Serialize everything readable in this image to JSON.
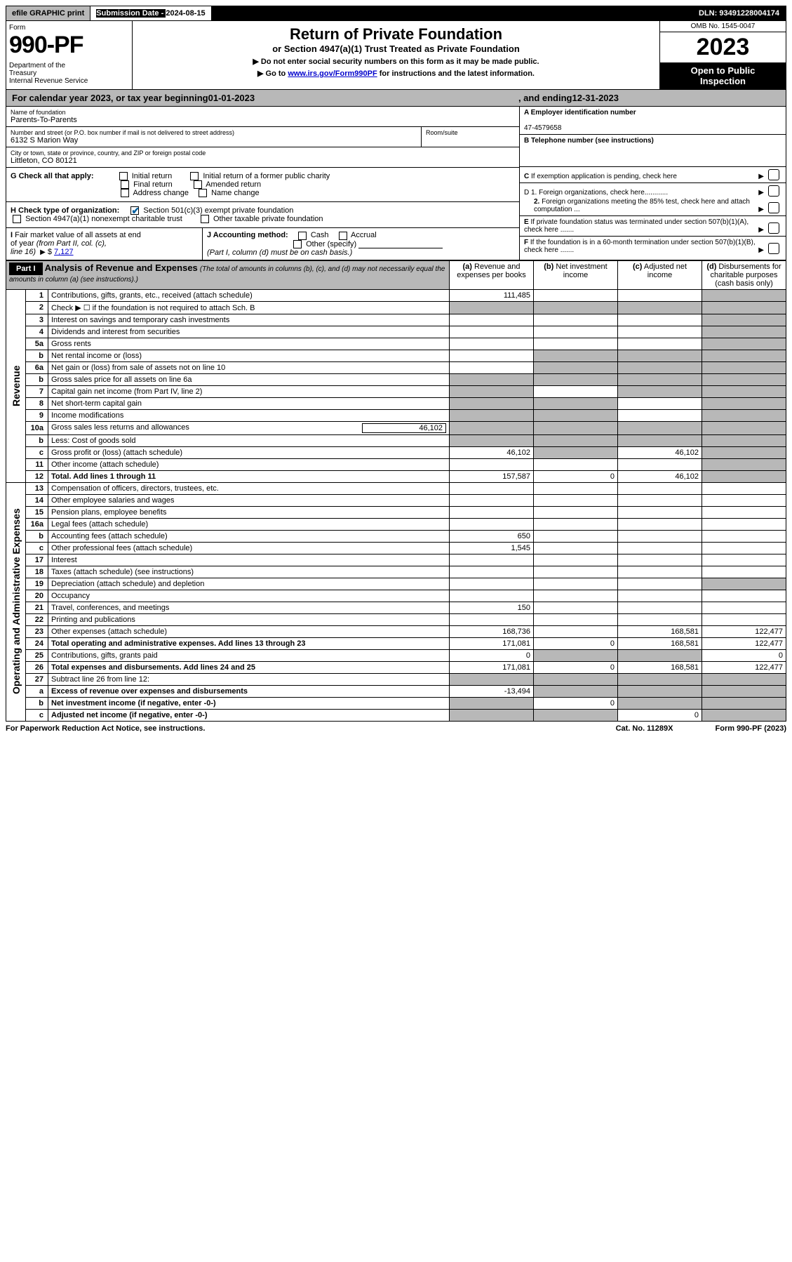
{
  "top": {
    "efile": "efile GRAPHIC print",
    "sub_date_lbl": "Submission Date - ",
    "sub_date_val": "2024-08-15",
    "dln": "DLN: 93491228004174"
  },
  "header": {
    "form": "Form",
    "formnum": "990-PF",
    "dept": "Department of the Treasury\nInternal Revenue Service",
    "title": "Return of Private Foundation",
    "sub": "or Section 4947(a)(1) Trust Treated as Private Foundation",
    "instr1": "▶ Do not enter social security numbers on this form as it may be made public.",
    "instr2_pre": "▶ Go to ",
    "instr2_link": "www.irs.gov/Form990PF",
    "instr2_post": " for instructions and the latest information.",
    "omb": "OMB No. 1545-0047",
    "year": "2023",
    "open": "Open to Public Inspection"
  },
  "tax_year": {
    "pre": "For calendar year 2023, or tax year beginning ",
    "begin": "01-01-2023",
    "mid": ", and ending ",
    "end": "12-31-2023"
  },
  "entity": {
    "name_lbl": "Name of foundation",
    "name": "Parents-To-Parents",
    "addr_lbl": "Number and street (or P.O. box number if mail is not delivered to street address)",
    "addr": "6132 S Marion Way",
    "room_lbl": "Room/suite",
    "city_lbl": "City or town, state or province, country, and ZIP or foreign postal code",
    "city": "Littleton, CO  80121",
    "a_lbl": "A Employer identification number",
    "a_val": "47-4579658",
    "b_lbl": "B Telephone number (see instructions)",
    "c_lbl": "C If exemption application is pending, check here",
    "d1": "D 1. Foreign organizations, check here............",
    "d2": "2. Foreign organizations meeting the 85% test, check here and attach computation ...",
    "e_lbl": "E  If private foundation status was terminated under section 507(b)(1)(A), check here .......",
    "f_lbl": "F  If the foundation is in a 60-month termination under section 507(b)(1)(B), check here .......",
    "g_lbl": "G Check all that apply:",
    "g_opts": [
      "Initial return",
      "Initial return of a former public charity",
      "Final return",
      "Amended return",
      "Address change",
      "Name change"
    ],
    "h_lbl": "H Check type of organization:",
    "h_opts": [
      "Section 501(c)(3) exempt private foundation",
      "Section 4947(a)(1) nonexempt charitable trust",
      "Other taxable private foundation"
    ],
    "i_lbl": "I Fair market value of all assets at end of year (from Part II, col. (c), line 16) ",
    "i_val": "7,127",
    "j_lbl": "J Accounting method:",
    "j_opts": [
      "Cash",
      "Accrual",
      "Other (specify)"
    ],
    "j_note": "(Part I, column (d) must be on cash basis.)"
  },
  "part1": {
    "hdr": "Part I",
    "title": "Analysis of Revenue and Expenses",
    "title_note": "(The total of amounts in columns (b), (c), and (d) may not necessarily equal the amounts in column (a) (see instructions).)",
    "cols": {
      "a": "(a) Revenue and expenses per books",
      "b": "(b) Net investment income",
      "c": "(c) Adjusted net income",
      "d": "(d) Disbursements for charitable purposes (cash basis only)"
    }
  },
  "sections": [
    "Revenue",
    "Operating and Administrative Expenses"
  ],
  "rows": [
    {
      "n": "1",
      "desc": "Contributions, gifts, grants, etc., received (attach schedule)",
      "a": "111,485",
      "b": "",
      "c": "",
      "d": "",
      "d_shade": true
    },
    {
      "n": "2",
      "desc": "Check ▶ ☐ if the foundation is not required to attach Sch. B",
      "a_shade": true,
      "b_shade": true,
      "c_shade": true,
      "d_shade": true
    },
    {
      "n": "3",
      "desc": "Interest on savings and temporary cash investments",
      "a": "",
      "b": "",
      "c": "",
      "d_shade": true
    },
    {
      "n": "4",
      "desc": "Dividends and interest from securities",
      "a": "",
      "b": "",
      "c": "",
      "d_shade": true
    },
    {
      "n": "5a",
      "desc": "Gross rents",
      "a": "",
      "b": "",
      "c": "",
      "d_shade": true
    },
    {
      "n": "b",
      "desc": "Net rental income or (loss)",
      "a": "",
      "b_shade": true,
      "c_shade": true,
      "d_shade": true
    },
    {
      "n": "6a",
      "desc": "Net gain or (loss) from sale of assets not on line 10",
      "a": "",
      "b_shade": true,
      "c_shade": true,
      "d_shade": true
    },
    {
      "n": "b",
      "desc": "Gross sales price for all assets on line 6a",
      "a_shade": true,
      "b_shade": true,
      "c_shade": true,
      "d_shade": true
    },
    {
      "n": "7",
      "desc": "Capital gain net income (from Part IV, line 2)",
      "a_shade": true,
      "b": "",
      "c_shade": true,
      "d_shade": true
    },
    {
      "n": "8",
      "desc": "Net short-term capital gain",
      "a_shade": true,
      "b_shade": true,
      "c": "",
      "d_shade": true
    },
    {
      "n": "9",
      "desc": "Income modifications",
      "a_shade": true,
      "b_shade": true,
      "c": "",
      "d_shade": true
    },
    {
      "n": "10a",
      "desc": "Gross sales less returns and allowances",
      "inline": "46,102",
      "a_shade": true,
      "b_shade": true,
      "c_shade": true,
      "d_shade": true
    },
    {
      "n": "b",
      "desc": "Less: Cost of goods sold",
      "a_shade": true,
      "b_shade": true,
      "c_shade": true,
      "d_shade": true
    },
    {
      "n": "c",
      "desc": "Gross profit or (loss) (attach schedule)",
      "a": "46,102",
      "b_shade": true,
      "c": "46,102",
      "d_shade": true
    },
    {
      "n": "11",
      "desc": "Other income (attach schedule)",
      "a": "",
      "b": "",
      "c": "",
      "d_shade": true
    },
    {
      "n": "12",
      "desc": "Total. Add lines 1 through 11",
      "bold": true,
      "a": "157,587",
      "b": "0",
      "c": "46,102",
      "d_shade": true
    },
    {
      "n": "13",
      "desc": "Compensation of officers, directors, trustees, etc.",
      "a": "",
      "b": "",
      "c": "",
      "d": ""
    },
    {
      "n": "14",
      "desc": "Other employee salaries and wages",
      "a": "",
      "b": "",
      "c": "",
      "d": ""
    },
    {
      "n": "15",
      "desc": "Pension plans, employee benefits",
      "a": "",
      "b": "",
      "c": "",
      "d": ""
    },
    {
      "n": "16a",
      "desc": "Legal fees (attach schedule)",
      "a": "",
      "b": "",
      "c": "",
      "d": ""
    },
    {
      "n": "b",
      "desc": "Accounting fees (attach schedule)",
      "a": "650",
      "b": "",
      "c": "",
      "d": ""
    },
    {
      "n": "c",
      "desc": "Other professional fees (attach schedule)",
      "a": "1,545",
      "b": "",
      "c": "",
      "d": ""
    },
    {
      "n": "17",
      "desc": "Interest",
      "a": "",
      "b": "",
      "c": "",
      "d": ""
    },
    {
      "n": "18",
      "desc": "Taxes (attach schedule) (see instructions)",
      "a": "",
      "b": "",
      "c": "",
      "d": ""
    },
    {
      "n": "19",
      "desc": "Depreciation (attach schedule) and depletion",
      "a": "",
      "b": "",
      "c": "",
      "d_shade": true
    },
    {
      "n": "20",
      "desc": "Occupancy",
      "a": "",
      "b": "",
      "c": "",
      "d": ""
    },
    {
      "n": "21",
      "desc": "Travel, conferences, and meetings",
      "a": "150",
      "b": "",
      "c": "",
      "d": ""
    },
    {
      "n": "22",
      "desc": "Printing and publications",
      "a": "",
      "b": "",
      "c": "",
      "d": ""
    },
    {
      "n": "23",
      "desc": "Other expenses (attach schedule)",
      "a": "168,736",
      "b": "",
      "c": "168,581",
      "d": "122,477"
    },
    {
      "n": "24",
      "desc": "Total operating and administrative expenses. Add lines 13 through 23",
      "bold": true,
      "a": "171,081",
      "b": "0",
      "c": "168,581",
      "d": "122,477"
    },
    {
      "n": "25",
      "desc": "Contributions, gifts, grants paid",
      "a": "0",
      "b_shade": true,
      "c_shade": true,
      "d": "0"
    },
    {
      "n": "26",
      "desc": "Total expenses and disbursements. Add lines 24 and 25",
      "bold": true,
      "a": "171,081",
      "b": "0",
      "c": "168,581",
      "d": "122,477"
    },
    {
      "n": "27",
      "desc": "Subtract line 26 from line 12:",
      "a_shade": true,
      "b_shade": true,
      "c_shade": true,
      "d_shade": true
    },
    {
      "n": "a",
      "desc": "Excess of revenue over expenses and disbursements",
      "bold": true,
      "a": "-13,494",
      "b_shade": true,
      "c_shade": true,
      "d_shade": true
    },
    {
      "n": "b",
      "desc": "Net investment income (if negative, enter -0-)",
      "bold": true,
      "a_shade": true,
      "b": "0",
      "c_shade": true,
      "d_shade": true
    },
    {
      "n": "c",
      "desc": "Adjusted net income (if negative, enter -0-)",
      "bold": true,
      "a_shade": true,
      "b_shade": true,
      "c": "0",
      "d_shade": true
    }
  ],
  "footer": {
    "left": "For Paperwork Reduction Act Notice, see instructions.",
    "mid": "Cat. No. 11289X",
    "right": "Form 990-PF (2023)"
  }
}
